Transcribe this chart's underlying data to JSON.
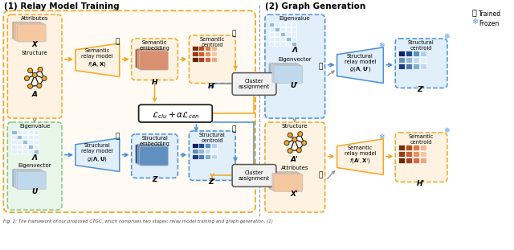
{
  "title1": "(1) Relay Model Training",
  "title2": "(2) Graph Generation",
  "legend_trained": "Trained",
  "legend_frozen": "Frozen",
  "orange": "#F5A623",
  "orange_bg": "#FEF3E2",
  "blue": "#4A90D9",
  "blue_bg": "#E0EFFA",
  "green_bg": "#E8F5E9",
  "green_border": "#82C784",
  "brown_colors": [
    "#7B2D00",
    "#B84A1A",
    "#E07848",
    "#F5B88A",
    "#9A3A10",
    "#CC6030",
    "#EE9060",
    "#F8C8A0",
    "#6A2500",
    "#A84020",
    "#D86840",
    "#F0A878"
  ],
  "blue_colors": [
    "#0A2060",
    "#1A4A9A",
    "#5A90C8",
    "#B0D0EC",
    "#6090B8",
    "#90B8D8",
    "#C0DCF0",
    "#E0F0FA",
    "#1A3A80",
    "#4A78B0",
    "#80AECE",
    "#C0D8EC"
  ]
}
